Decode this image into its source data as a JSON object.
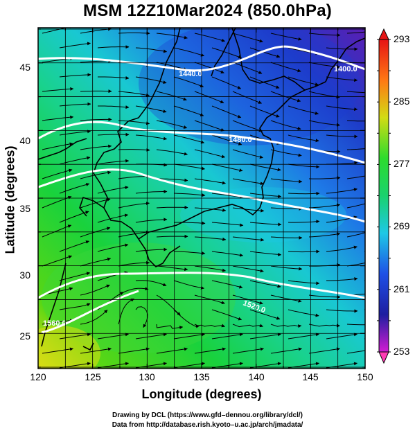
{
  "title": "MSM 12Z10Mar2024 (850.0hPa)",
  "axes": {
    "xlabel": "Longitude (degrees)",
    "ylabel": "Latitude  (degrees)",
    "xticks": [
      "120",
      "125",
      "130",
      "135",
      "140",
      "145",
      "150"
    ],
    "yticks": [
      "45",
      "40",
      "35",
      "30",
      "25"
    ],
    "lon_range": [
      120,
      150
    ],
    "lat_range": [
      22.4,
      47.6
    ]
  },
  "colorbar": {
    "ticks": [
      "293",
      "285",
      "277",
      "269",
      "261",
      "253"
    ],
    "range": [
      253,
      293
    ],
    "colors": [
      "#d21cd2",
      "#1e1ea0",
      "#1e50e6",
      "#1ec8e6",
      "#19d26e",
      "#2ddc2d",
      "#d2dc14",
      "#ff7814",
      "#e61414"
    ]
  },
  "contours": {
    "labels": [
      "1400.0",
      "1440.0",
      "1480.0",
      "1520.0",
      "1560.0"
    ]
  },
  "credits": {
    "line1": "Drawing by DCL (https://www.gfd–dennou.org/library/dcl/)",
    "line2": "Data from http://database.rish.kyoto–u.ac.jp/arch/jmadata/"
  }
}
